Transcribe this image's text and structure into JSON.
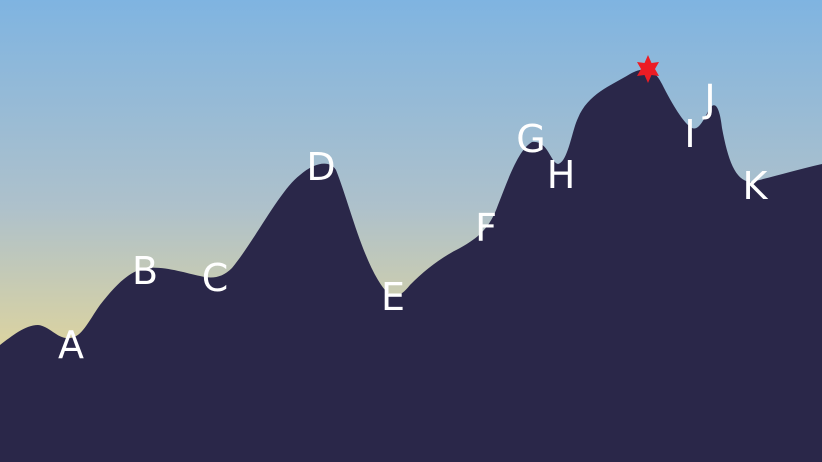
{
  "labels": [
    "A",
    "B",
    "C",
    "D",
    "E",
    "F",
    "G",
    "H",
    "I",
    "J",
    "K"
  ],
  "colors": {
    "sky_top": "#7fb4e1",
    "sky_mid": "#aec1cb",
    "sky_bottom": "#e3d699",
    "mountain": "#2a2749",
    "label": "#ffffff",
    "star": "#ec1c24"
  },
  "icons": {
    "summit_marker": "star-icon"
  }
}
